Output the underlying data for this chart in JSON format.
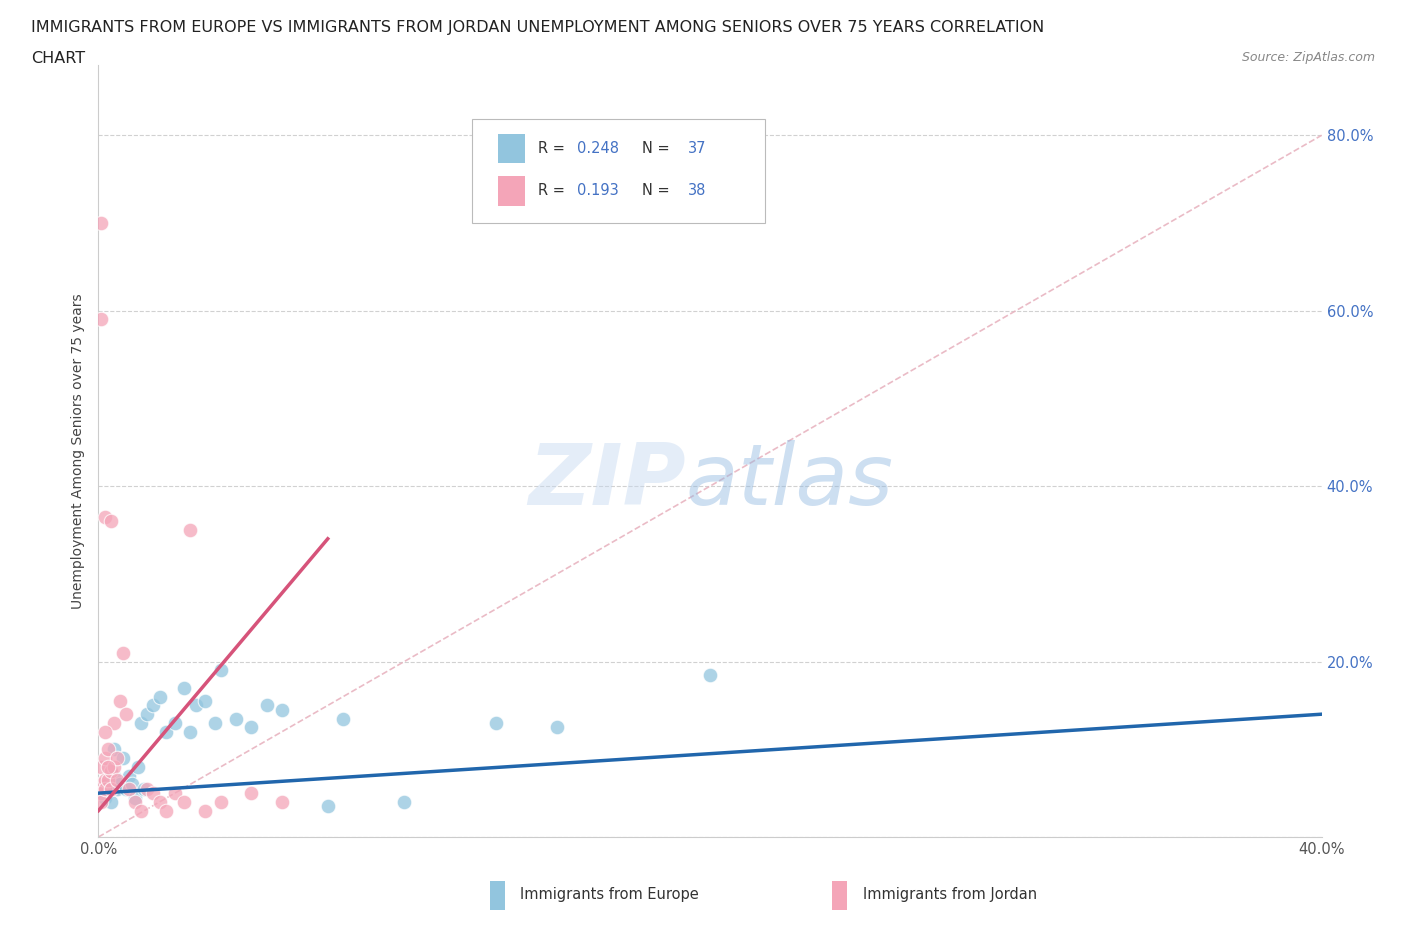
{
  "title_line1": "IMMIGRANTS FROM EUROPE VS IMMIGRANTS FROM JORDAN UNEMPLOYMENT AMONG SENIORS OVER 75 YEARS CORRELATION",
  "title_line2": "CHART",
  "source": "Source: ZipAtlas.com",
  "ylabel": "Unemployment Among Seniors over 75 years",
  "xlim": [
    0.0,
    0.4
  ],
  "ylim": [
    0.0,
    0.88
  ],
  "ytick_positions": [
    0.0,
    0.2,
    0.4,
    0.6,
    0.8
  ],
  "ytick_labels_right": [
    "",
    "20.0%",
    "40.0%",
    "60.0%",
    "80.0%"
  ],
  "xtick_positions": [
    0.0,
    0.1,
    0.2,
    0.3,
    0.4
  ],
  "xtick_labels": [
    "0.0%",
    "",
    "",
    "",
    "40.0%"
  ],
  "legend_r1": "0.248",
  "legend_n1": "37",
  "legend_r2": "0.193",
  "legend_n2": "38",
  "legend_label1": "Immigrants from Europe",
  "legend_label2": "Immigrants from Jordan",
  "blue_color": "#92c5de",
  "pink_color": "#f4a5b8",
  "blue_line_color": "#2166ac",
  "pink_line_color": "#d6537a",
  "diag_line_color": "#e8b4c0",
  "text_color": "#4472c4",
  "label_color": "#555555",
  "blue_x": [
    0.001,
    0.002,
    0.003,
    0.004,
    0.005,
    0.005,
    0.006,
    0.007,
    0.008,
    0.009,
    0.01,
    0.011,
    0.012,
    0.013,
    0.014,
    0.015,
    0.016,
    0.018,
    0.02,
    0.022,
    0.025,
    0.028,
    0.03,
    0.032,
    0.035,
    0.038,
    0.04,
    0.045,
    0.05,
    0.055,
    0.06,
    0.075,
    0.08,
    0.1,
    0.13,
    0.15,
    0.2
  ],
  "blue_y": [
    0.05,
    0.045,
    0.06,
    0.04,
    0.07,
    0.1,
    0.055,
    0.06,
    0.09,
    0.055,
    0.07,
    0.06,
    0.045,
    0.08,
    0.13,
    0.055,
    0.14,
    0.15,
    0.16,
    0.12,
    0.13,
    0.17,
    0.12,
    0.15,
    0.155,
    0.13,
    0.19,
    0.135,
    0.125,
    0.15,
    0.145,
    0.035,
    0.135,
    0.04,
    0.13,
    0.125,
    0.185
  ],
  "pink_x": [
    0.001,
    0.001,
    0.001,
    0.001,
    0.002,
    0.002,
    0.002,
    0.003,
    0.003,
    0.004,
    0.004,
    0.005,
    0.005,
    0.006,
    0.006,
    0.007,
    0.008,
    0.009,
    0.01,
    0.012,
    0.014,
    0.016,
    0.018,
    0.02,
    0.022,
    0.025,
    0.028,
    0.03,
    0.035,
    0.04,
    0.05,
    0.06,
    0.001,
    0.001,
    0.002,
    0.002,
    0.003,
    0.004
  ],
  "pink_y": [
    0.06,
    0.05,
    0.08,
    0.04,
    0.065,
    0.055,
    0.09,
    0.065,
    0.1,
    0.055,
    0.075,
    0.08,
    0.13,
    0.065,
    0.09,
    0.155,
    0.21,
    0.14,
    0.055,
    0.04,
    0.03,
    0.055,
    0.05,
    0.04,
    0.03,
    0.05,
    0.04,
    0.35,
    0.03,
    0.04,
    0.05,
    0.04,
    0.7,
    0.59,
    0.365,
    0.12,
    0.08,
    0.36
  ],
  "pink_trend_x": [
    0.0,
    0.075
  ],
  "blue_trend_x": [
    0.0,
    0.4
  ],
  "blue_trend_y": [
    0.05,
    0.14
  ],
  "pink_trend_y_start": 0.03,
  "pink_trend_y_end": 0.34
}
